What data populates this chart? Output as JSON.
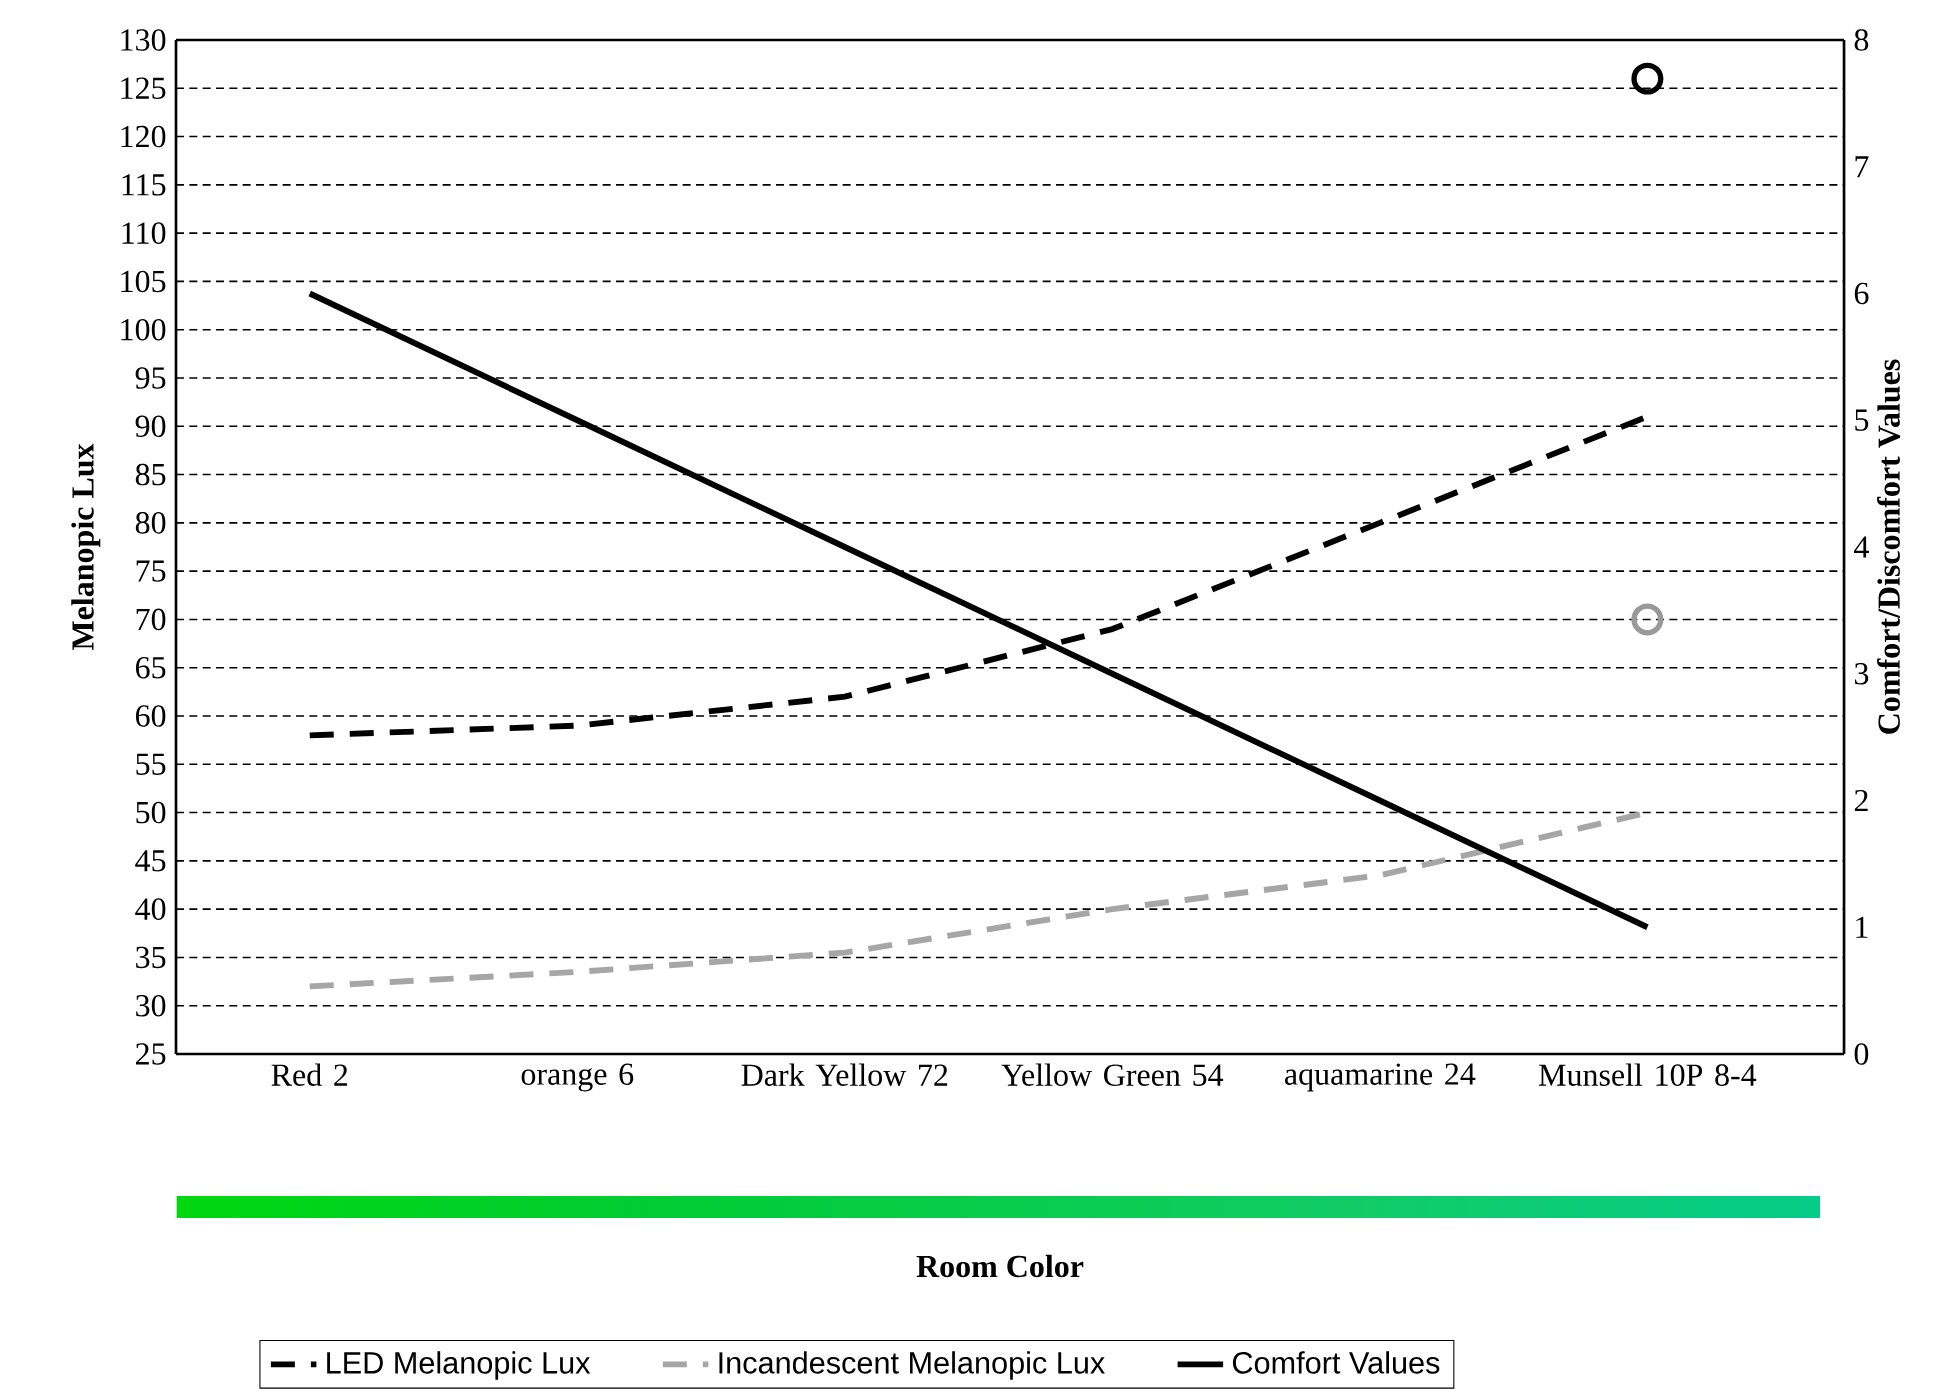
{
  "chart_data": {
    "type": "line",
    "annotations": [
      "Room Color"
    ],
    "ylabel": "Melanopic Lux",
    "y2label": "Comfort/Discomfort Values",
    "categories": [
      "Red 2",
      "orange 6",
      "Dark Yellow 72",
      "Yellow Green 54",
      "aquamarine 24",
      "Munsell 10P 8-4"
    ],
    "ylim": [
      25,
      130
    ],
    "yticks": [
      25,
      30,
      35,
      40,
      45,
      50,
      55,
      60,
      65,
      70,
      75,
      80,
      85,
      90,
      95,
      100,
      105,
      110,
      115,
      120,
      125,
      130
    ],
    "y2lim": [
      0,
      8
    ],
    "y2ticks": [
      0,
      1,
      2,
      3,
      4,
      5,
      6,
      7,
      8
    ],
    "grid": "y",
    "legend": "bottom",
    "series": [
      {
        "name": "LED Melanopic Lux",
        "color": "#000000",
        "line_style": "dashed",
        "values": [
          58,
          59,
          62,
          69,
          80,
          91
        ]
      },
      {
        "name": "Incandescent Melanopic Lux",
        "color": "#a6a6a6",
        "line_style": "dashed",
        "values": [
          32,
          33.5,
          35.5,
          40,
          43.5,
          50
        ]
      },
      {
        "name": "Comfort Values",
        "color": "#000000",
        "line_style": "solid",
        "axis": "y2",
        "values": [
          6,
          5,
          4,
          3,
          2,
          1
        ]
      },
      {
        "type": "scatter",
        "marker": "circle",
        "color": "#000000",
        "values": [
          null,
          null,
          null,
          null,
          null,
          126
        ]
      },
      {
        "type": "scatter",
        "marker": "circle",
        "color": "#999999",
        "values": [
          null,
          null,
          null,
          null,
          null,
          70
        ]
      }
    ]
  }
}
